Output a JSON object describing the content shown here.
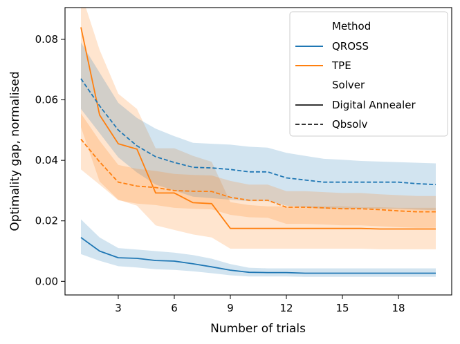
{
  "chart_data": {
    "type": "line",
    "title": "",
    "xlabel": "Number of trials",
    "ylabel": "Optimality gap, normalised",
    "xlim": [
      0.15,
      20.85
    ],
    "ylim": [
      -0.0045,
      0.0905
    ],
    "xticks": [
      3,
      6,
      9,
      12,
      15,
      18
    ],
    "yticks": [
      0.0,
      0.02,
      0.04,
      0.06,
      0.08
    ],
    "xtick_labels": [
      "3",
      "6",
      "9",
      "12",
      "15",
      "18"
    ],
    "ytick_labels": [
      "0.00",
      "0.02",
      "0.04",
      "0.06",
      "0.08"
    ],
    "legend": {
      "position": "top-right",
      "method_title": "Method",
      "solver_title": "Solver",
      "entries": {
        "qross": "QROSS",
        "tpe": "TPE",
        "digital_annealer": "Digital Annealer",
        "qbsolv": "Qbsolv"
      }
    },
    "colors": {
      "qross": "#1f77b4",
      "tpe": "#ff7f0e"
    },
    "x": [
      1,
      2,
      3,
      4,
      5,
      6,
      7,
      8,
      9,
      10,
      11,
      12,
      13,
      14,
      15,
      16,
      17,
      18,
      19,
      20
    ],
    "series": [
      {
        "name": "QROSS",
        "method": "QROSS",
        "solver": "Digital Annealer",
        "values": [
          0.0145,
          0.01,
          0.0078,
          0.0076,
          0.0069,
          0.0067,
          0.0058,
          0.0048,
          0.0037,
          0.003,
          0.0029,
          0.0029,
          0.0027,
          0.0027,
          0.0027,
          0.0027,
          0.0027,
          0.0027,
          0.0027,
          0.0027
        ],
        "lower": [
          0.009,
          0.0068,
          0.005,
          0.0046,
          0.004,
          0.0038,
          0.0033,
          0.0027,
          0.002,
          0.0016,
          0.0016,
          0.0016,
          0.0015,
          0.0015,
          0.0015,
          0.0015,
          0.0015,
          0.0015,
          0.0015,
          0.0015
        ],
        "upper": [
          0.0205,
          0.0145,
          0.011,
          0.0105,
          0.01,
          0.0095,
          0.0087,
          0.0075,
          0.0057,
          0.0045,
          0.0043,
          0.0043,
          0.0043,
          0.0043,
          0.0043,
          0.0043,
          0.0043,
          0.0043,
          0.0043,
          0.0043
        ]
      },
      {
        "name": "TPE",
        "method": "TPE",
        "solver": "Digital Annealer",
        "values": [
          0.084,
          0.055,
          0.0455,
          0.0437,
          0.0292,
          0.0292,
          0.026,
          0.0257,
          0.0175,
          0.0175,
          0.0175,
          0.0175,
          0.0175,
          0.0175,
          0.0175,
          0.0175,
          0.0173,
          0.0173,
          0.0173,
          0.0173
        ],
        "lower": [
          0.051,
          0.033,
          0.027,
          0.025,
          0.0185,
          0.017,
          0.0155,
          0.0145,
          0.0108,
          0.0108,
          0.0108,
          0.0108,
          0.0108,
          0.0108,
          0.0108,
          0.0108,
          0.0106,
          0.0106,
          0.0106,
          0.0106
        ],
        "upper": [
          0.0955,
          0.0765,
          0.062,
          0.057,
          0.044,
          0.044,
          0.0415,
          0.0395,
          0.0262,
          0.0252,
          0.0248,
          0.0248,
          0.0248,
          0.0248,
          0.0248,
          0.0245,
          0.0245,
          0.0243,
          0.0243,
          0.0243
        ]
      },
      {
        "name": "QROSS",
        "method": "QROSS",
        "solver": "Qbsolv",
        "values": [
          0.067,
          0.058,
          0.05,
          0.0448,
          0.0412,
          0.0393,
          0.0377,
          0.0375,
          0.037,
          0.0362,
          0.0362,
          0.0342,
          0.0335,
          0.0328,
          0.0328,
          0.0328,
          0.0328,
          0.0328,
          0.0323,
          0.032
        ],
        "lower": [
          0.057,
          0.049,
          0.041,
          0.036,
          0.032,
          0.03,
          0.028,
          0.0275,
          0.027,
          0.0265,
          0.0265,
          0.025,
          0.0245,
          0.024,
          0.024,
          0.024,
          0.024,
          0.024,
          0.0237,
          0.0235
        ],
        "upper": [
          0.079,
          0.069,
          0.059,
          0.054,
          0.0505,
          0.048,
          0.0458,
          0.0455,
          0.0452,
          0.0445,
          0.0442,
          0.0425,
          0.0415,
          0.0405,
          0.0402,
          0.0398,
          0.0396,
          0.0394,
          0.0392,
          0.039
        ]
      },
      {
        "name": "TPE",
        "method": "TPE",
        "solver": "Qbsolv",
        "values": [
          0.047,
          0.0395,
          0.0328,
          0.0315,
          0.031,
          0.03,
          0.0298,
          0.0297,
          0.0278,
          0.0268,
          0.0268,
          0.0245,
          0.0245,
          0.0243,
          0.024,
          0.024,
          0.0237,
          0.0233,
          0.023,
          0.023
        ],
        "lower": [
          0.037,
          0.032,
          0.0268,
          0.0257,
          0.0252,
          0.0243,
          0.024,
          0.0238,
          0.022,
          0.0212,
          0.021,
          0.019,
          0.019,
          0.0188,
          0.0185,
          0.0185,
          0.0182,
          0.0179,
          0.0177,
          0.0177
        ],
        "upper": [
          0.0555,
          0.0465,
          0.0385,
          0.0372,
          0.0365,
          0.0355,
          0.0352,
          0.035,
          0.0332,
          0.032,
          0.032,
          0.0298,
          0.0298,
          0.0295,
          0.0292,
          0.0292,
          0.0288,
          0.0285,
          0.0282,
          0.0282
        ]
      }
    ]
  }
}
